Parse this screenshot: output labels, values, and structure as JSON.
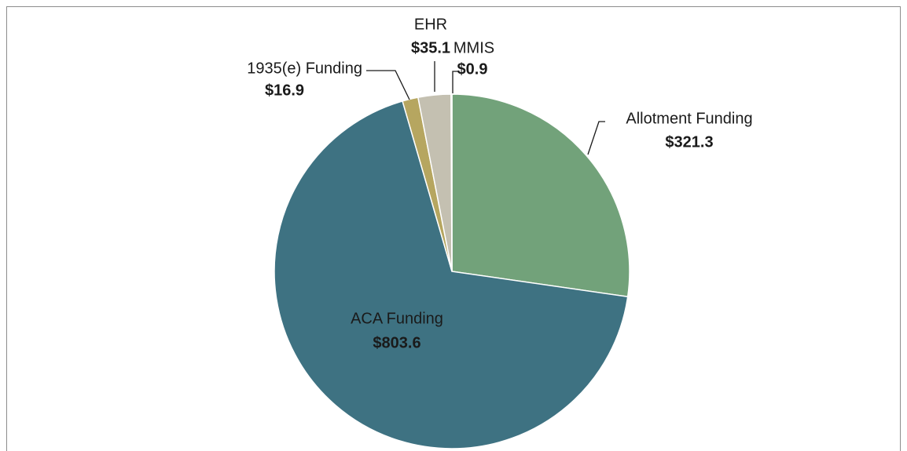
{
  "chart_data": {
    "type": "pie",
    "categories": [
      "Allotment Funding",
      "ACA Funding",
      "1935(e) Funding",
      "EHR",
      "MMIS"
    ],
    "values": [
      321.3,
      803.6,
      16.9,
      35.1,
      0.9
    ],
    "value_labels": [
      "$321.3",
      "$803.6",
      "$16.9",
      "$35.1",
      "$0.9"
    ],
    "colors": [
      "#72a27a",
      "#3e7282",
      "#b6a660",
      "#c4c0b1",
      "#dedcd0"
    ]
  }
}
